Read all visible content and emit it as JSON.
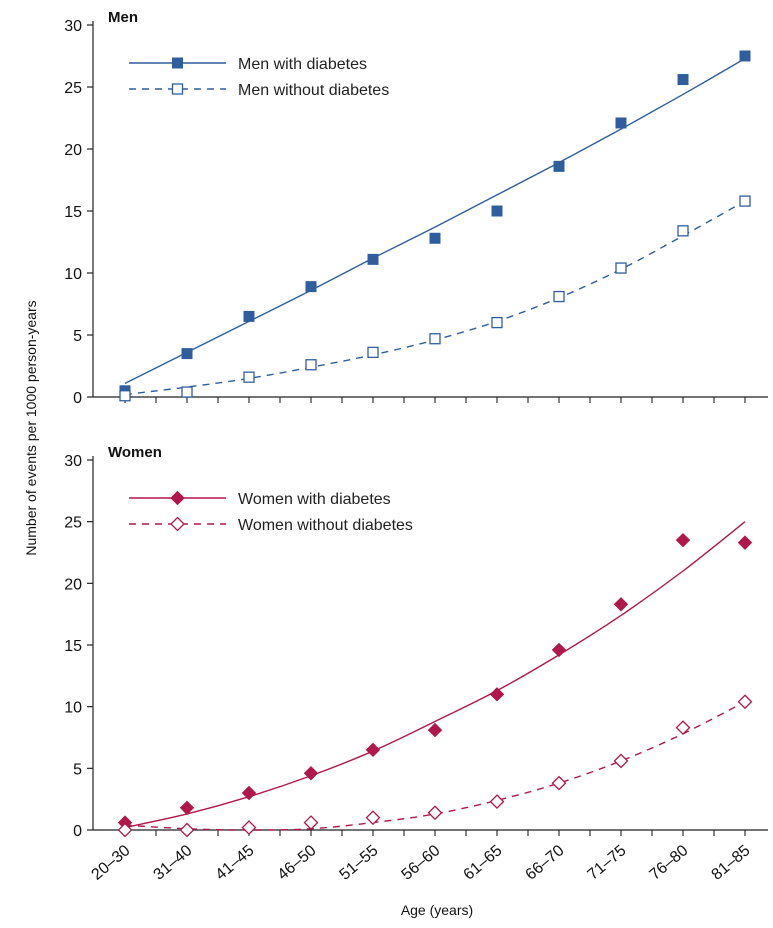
{
  "chart_data": [
    {
      "type": "scatter",
      "title": "Men",
      "xlabel": "Age (years)",
      "ylabel": "Number of events per 1000 person-years",
      "categories": [
        "20–30",
        "31–40",
        "41–45",
        "46–50",
        "51–55",
        "56–60",
        "61–65",
        "66–70",
        "71–75",
        "76–80",
        "81–85"
      ],
      "ylim": [
        0,
        30
      ],
      "yticks": [
        0,
        5,
        10,
        15,
        20,
        25,
        30
      ],
      "legend_position": "top-left",
      "series": [
        {
          "name": "Men with diabetes",
          "color": "#2f5d9e",
          "marker": "square-filled",
          "line_style": "solid",
          "values": [
            0.5,
            3.5,
            6.5,
            8.9,
            11.1,
            12.8,
            15.0,
            18.6,
            22.1,
            25.6,
            27.5
          ],
          "fit": [
            1.1,
            3.6,
            6.1,
            8.6,
            11.2,
            13.7,
            16.3,
            18.9,
            21.6,
            24.4,
            27.3
          ]
        },
        {
          "name": "Men without diabetes",
          "color": "#2f5d9e",
          "marker": "square-open",
          "line_style": "dashed",
          "values": [
            0.1,
            0.4,
            1.6,
            2.6,
            3.6,
            4.7,
            6.0,
            8.1,
            10.4,
            13.4,
            15.8
          ],
          "fit": [
            0.2,
            0.8,
            1.5,
            2.4,
            3.4,
            4.6,
            6.1,
            8.0,
            10.3,
            13.0,
            15.8
          ]
        }
      ]
    },
    {
      "type": "scatter",
      "title": "Women",
      "xlabel": "Age (years)",
      "ylabel": "Number of events per 1000 person-years",
      "categories": [
        "20–30",
        "31–40",
        "41–45",
        "46–50",
        "51–55",
        "56–60",
        "61–65",
        "66–70",
        "71–75",
        "76–80",
        "81–85"
      ],
      "ylim": [
        0,
        30
      ],
      "yticks": [
        0,
        5,
        10,
        15,
        20,
        25,
        30
      ],
      "legend_position": "top-left",
      "series": [
        {
          "name": "Women with diabetes",
          "color": "#b0174a",
          "marker": "diamond-filled",
          "line_style": "solid",
          "values": [
            0.6,
            1.8,
            3.0,
            4.6,
            6.5,
            8.1,
            11.0,
            14.6,
            18.3,
            23.5,
            23.3
          ],
          "fit": [
            0.2,
            1.3,
            2.7,
            4.4,
            6.4,
            8.8,
            11.3,
            14.2,
            17.4,
            21.0,
            25.0
          ]
        },
        {
          "name": "Women without diabetes",
          "color": "#b0174a",
          "marker": "diamond-open",
          "line_style": "dashed",
          "values": [
            0.0,
            0.0,
            0.2,
            0.6,
            1.0,
            1.4,
            2.3,
            3.8,
            5.6,
            8.3,
            10.4
          ],
          "fit": [
            0.4,
            0.1,
            0.0,
            0.1,
            0.6,
            1.3,
            2.4,
            3.8,
            5.6,
            7.8,
            10.4
          ]
        }
      ]
    }
  ]
}
